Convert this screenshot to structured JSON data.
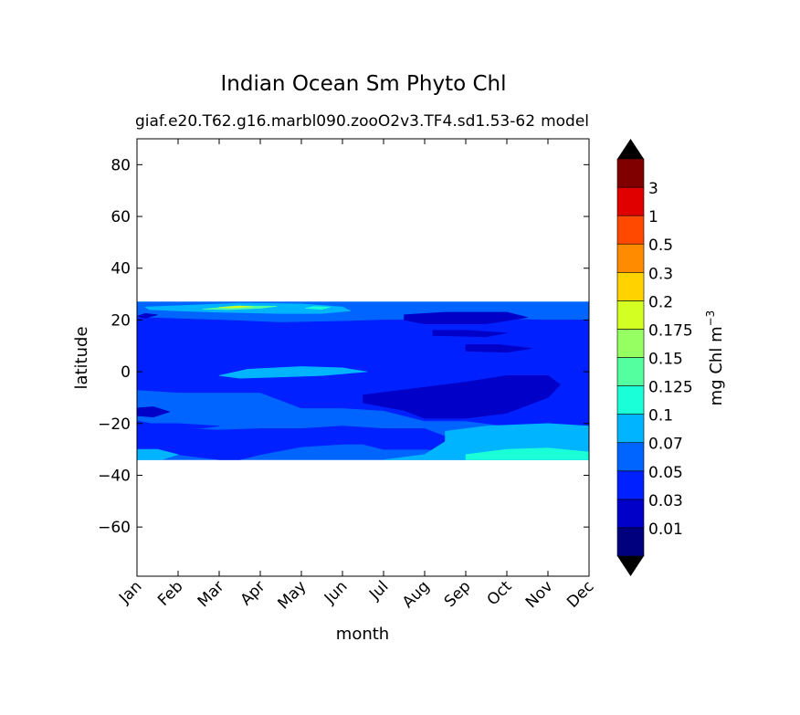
{
  "chart_data": {
    "type": "heatmap",
    "subtype": "filled-contour",
    "title": "Indian Ocean Sm Phyto Chl",
    "subtitle_left": "giaf.e20.T62.g16.marbl090.zooO2v3.TF4.sd1.53-62",
    "subtitle_right": "model",
    "xlabel": "month",
    "ylabel": "latitude",
    "x_categories": [
      "Jan",
      "Feb",
      "Mar",
      "Apr",
      "May",
      "Jun",
      "Jul",
      "Aug",
      "Sep",
      "Oct",
      "Nov",
      "Dec"
    ],
    "xlim": [
      1,
      12
    ],
    "ylim": [
      -79,
      90
    ],
    "yticks": [
      80,
      60,
      40,
      20,
      0,
      -20,
      -40,
      -60
    ],
    "ytick_labels": [
      "80",
      "60",
      "40",
      "20",
      "0",
      "−20",
      "−40",
      "−60"
    ],
    "data_lat_range": [
      -34,
      27
    ],
    "colorbar": {
      "label": "mg Chl m",
      "label_exponent": "−3",
      "levels": [
        "0.01",
        "0.03",
        "0.05",
        "0.07",
        "0.1",
        "0.125",
        "0.15",
        "0.175",
        "0.2",
        "0.3",
        "0.5",
        "1",
        "3"
      ],
      "colors": [
        "#00007f",
        "#0000c8",
        "#0020ff",
        "#0064ff",
        "#00b4ff",
        "#1affd8",
        "#54ff9f",
        "#96ff61",
        "#d4ff23",
        "#ffd200",
        "#ff8c00",
        "#ff4800",
        "#e00000",
        "#800000"
      ],
      "extend_low_color": "#000000",
      "extend_high_color": "#000000"
    },
    "regions": [
      {
        "level": 3,
        "points": [
          [
            1,
            27
          ],
          [
            12,
            27
          ],
          [
            12,
            -34
          ],
          [
            1,
            -34
          ]
        ]
      },
      {
        "level": 2,
        "points": [
          [
            1,
            21
          ],
          [
            2,
            20.5
          ],
          [
            3,
            20
          ],
          [
            4.5,
            19
          ],
          [
            6,
            19.5
          ],
          [
            7,
            20
          ],
          [
            8,
            20
          ],
          [
            9.5,
            20.5
          ],
          [
            11,
            20
          ],
          [
            12,
            20
          ],
          [
            12,
            -22
          ],
          [
            11,
            -22
          ],
          [
            10,
            -21
          ],
          [
            9,
            -19
          ],
          [
            8,
            -19
          ],
          [
            7,
            -15
          ],
          [
            6,
            -14
          ],
          [
            5,
            -14
          ],
          [
            4.5,
            -11
          ],
          [
            4,
            -8
          ],
          [
            3,
            -8
          ],
          [
            2,
            -8
          ],
          [
            1,
            -7
          ],
          [
            1,
            -19
          ],
          [
            2,
            -22
          ],
          [
            3,
            -22.5
          ],
          [
            4,
            -22
          ],
          [
            5,
            -22
          ],
          [
            6,
            -21
          ],
          [
            7,
            -22
          ],
          [
            8,
            -22
          ],
          [
            8.5,
            -25
          ],
          [
            9,
            -26
          ],
          [
            9.5,
            -25
          ],
          [
            10,
            -26
          ],
          [
            11,
            -27
          ],
          [
            12,
            -27
          ],
          [
            12,
            -30
          ],
          [
            11,
            -28
          ],
          [
            10,
            -29
          ],
          [
            9,
            -31
          ],
          [
            8,
            -30
          ],
          [
            7,
            -30
          ],
          [
            6.5,
            -28
          ],
          [
            6,
            -28
          ],
          [
            5,
            -29
          ],
          [
            4,
            -32
          ],
          [
            3.5,
            -34
          ],
          [
            3,
            -34
          ],
          [
            2,
            -32
          ],
          [
            1,
            -31
          ]
        ]
      },
      {
        "level": 2,
        "points": [
          [
            1,
            -21
          ],
          [
            1.3,
            -20
          ],
          [
            2,
            -20
          ],
          [
            3,
            -21
          ],
          [
            2.5,
            -22
          ],
          [
            1.6,
            -22.5
          ]
        ]
      },
      {
        "level": 1,
        "points": [
          [
            6.5,
            -9
          ],
          [
            7.5,
            -7
          ],
          [
            9,
            -4
          ],
          [
            10,
            -1.5
          ],
          [
            11,
            -1.5
          ],
          [
            11.3,
            -5
          ],
          [
            11,
            -10
          ],
          [
            10,
            -16
          ],
          [
            9,
            -18
          ],
          [
            8,
            -18
          ],
          [
            7.5,
            -15
          ],
          [
            6.5,
            -12
          ]
        ]
      },
      {
        "level": 1,
        "points": [
          [
            7.5,
            22
          ],
          [
            8.5,
            23
          ],
          [
            10,
            23
          ],
          [
            10.5,
            21
          ],
          [
            9.5,
            18.5
          ],
          [
            8,
            18.5
          ],
          [
            7.5,
            20
          ]
        ]
      },
      {
        "level": 1,
        "points": [
          [
            8.2,
            16
          ],
          [
            9,
            16
          ],
          [
            10,
            15
          ],
          [
            9.5,
            13.5
          ],
          [
            8.2,
            14
          ]
        ]
      },
      {
        "level": 1,
        "points": [
          [
            9,
            10.5
          ],
          [
            9.8,
            10.5
          ],
          [
            10.6,
            9
          ],
          [
            10,
            7.5
          ],
          [
            9,
            8
          ]
        ]
      },
      {
        "level": 1,
        "points": [
          [
            1,
            -14
          ],
          [
            1.4,
            -13.5
          ],
          [
            1.8,
            -15.5
          ],
          [
            1.4,
            -17.5
          ],
          [
            1,
            -17
          ]
        ]
      },
      {
        "level": 1,
        "points": [
          [
            1,
            21.5
          ],
          [
            1.2,
            22.5
          ],
          [
            1.5,
            22
          ],
          [
            1.2,
            20.7
          ]
        ]
      },
      {
        "level": 4,
        "points": [
          [
            3,
            -1.5
          ],
          [
            3.7,
            1
          ],
          [
            5,
            2
          ],
          [
            6,
            1.5
          ],
          [
            6.6,
            0
          ],
          [
            5.5,
            -1.5
          ],
          [
            4.5,
            -2
          ],
          [
            3.5,
            -2.5
          ]
        ]
      },
      {
        "level": 4,
        "points": [
          [
            1.2,
            25
          ],
          [
            2,
            25.5
          ],
          [
            3.5,
            26.5
          ],
          [
            5,
            26.2
          ],
          [
            6,
            25
          ],
          [
            6.2,
            23.5
          ],
          [
            5.5,
            22.5
          ],
          [
            4.5,
            22.5
          ],
          [
            3,
            23
          ],
          [
            2,
            23.5
          ],
          [
            1.3,
            24
          ]
        ]
      },
      {
        "level": 4,
        "points": [
          [
            1,
            -30
          ],
          [
            1.5,
            -30
          ],
          [
            2,
            -32
          ],
          [
            1.6,
            -34
          ],
          [
            1,
            -34
          ]
        ]
      },
      {
        "level": 4,
        "points": [
          [
            8.5,
            -23
          ],
          [
            9.5,
            -21
          ],
          [
            11,
            -20
          ],
          [
            12,
            -21
          ],
          [
            12,
            -34
          ],
          [
            7,
            -34
          ],
          [
            8,
            -32
          ],
          [
            8.5,
            -27
          ]
        ]
      },
      {
        "level": 5,
        "points": [
          [
            9,
            -32
          ],
          [
            10,
            -30
          ],
          [
            11,
            -29.5
          ],
          [
            12,
            -31
          ],
          [
            12,
            -34
          ],
          [
            9,
            -34
          ]
        ]
      },
      {
        "level": 5,
        "points": [
          [
            5.1,
            24.5
          ],
          [
            5.3,
            25.2
          ],
          [
            5.7,
            25
          ],
          [
            5.5,
            24.1
          ]
        ]
      },
      {
        "level": 6,
        "points": [
          [
            2.6,
            24.2
          ],
          [
            3.4,
            25.4
          ],
          [
            4.4,
            25.3
          ],
          [
            4,
            24.5
          ],
          [
            3.2,
            24
          ]
        ]
      },
      {
        "level": 8,
        "points": [
          [
            3,
            24.9
          ],
          [
            3.5,
            25.4
          ],
          [
            3.8,
            25.1
          ],
          [
            3.3,
            24.7
          ]
        ]
      }
    ]
  }
}
